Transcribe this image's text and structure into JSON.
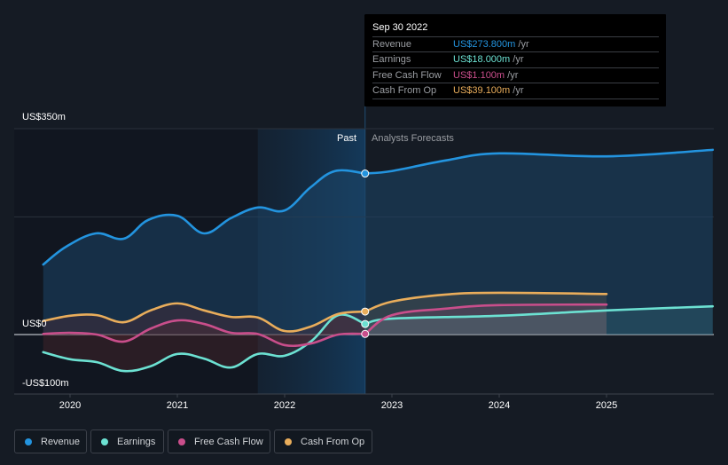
{
  "tooltip": {
    "date": "Sep 30 2022",
    "rows": [
      {
        "label": "Revenue",
        "value": "US$273.800m",
        "unit": "/yr",
        "color": "#2394df"
      },
      {
        "label": "Earnings",
        "value": "US$18.000m",
        "unit": "/yr",
        "color": "#6ce1d2"
      },
      {
        "label": "Free Cash Flow",
        "value": "US$1.100m",
        "unit": "/yr",
        "color": "#c94e8b"
      },
      {
        "label": "Cash From Op",
        "value": "US$39.100m",
        "unit": "/yr",
        "color": "#e9ad5b"
      }
    ]
  },
  "regions": {
    "past": "Past",
    "forecast": "Analysts Forecasts"
  },
  "legend": [
    {
      "label": "Revenue",
      "color": "#2394df"
    },
    {
      "label": "Earnings",
      "color": "#6ce1d2"
    },
    {
      "label": "Free Cash Flow",
      "color": "#c94e8b"
    },
    {
      "label": "Cash From Op",
      "color": "#e9ad5b"
    }
  ],
  "chart_data": {
    "type": "line",
    "title": "",
    "xlabel": "",
    "ylabel": "",
    "ylim": [
      -100,
      350
    ],
    "xlim": [
      2019.5,
      2025.99
    ],
    "y_tick_labels": [
      "US$350m",
      "US$0",
      "-US$100m"
    ],
    "y_ticks": [
      350,
      0,
      -100
    ],
    "gridlines": [
      350,
      200
    ],
    "x_tick_labels": [
      "2020",
      "2021",
      "2022",
      "2023",
      "2024",
      "2025"
    ],
    "x_ticks": [
      2020,
      2021,
      2022,
      2023,
      2024,
      2025
    ],
    "past_end": 2022.75,
    "highlight_start": 2021.75,
    "unit": "US$m",
    "series": [
      {
        "name": "Revenue",
        "color": "#2394df",
        "past": {
          "x": [
            2019.75,
            2019.96,
            2020.24,
            2020.5,
            2020.73,
            2021.0,
            2021.25,
            2021.5,
            2021.75,
            2022.0,
            2022.24,
            2022.47,
            2022.75
          ],
          "y": [
            119,
            149,
            172,
            163,
            195,
            202,
            172,
            198,
            216,
            211,
            250,
            278,
            273.8
          ]
        },
        "forecast": {
          "x": [
            2022.75,
            2023.0,
            2023.5,
            2024.0,
            2025.0,
            2025.99
          ],
          "y": [
            273.8,
            278,
            296,
            308,
            303,
            314
          ]
        }
      },
      {
        "name": "Earnings",
        "color": "#6ce1d2",
        "past": {
          "x": [
            2019.75,
            2020.0,
            2020.25,
            2020.5,
            2020.75,
            2021.0,
            2021.25,
            2021.5,
            2021.75,
            2022.0,
            2022.25,
            2022.5,
            2022.75
          ],
          "y": [
            -30,
            -42,
            -47,
            -62,
            -54,
            -33,
            -41,
            -56,
            -33,
            -36,
            -11,
            33,
            18
          ]
        },
        "forecast": {
          "x": [
            2022.75,
            2023.0,
            2024.0,
            2025.0,
            2025.99
          ],
          "y": [
            18,
            27,
            32,
            41,
            48
          ]
        }
      },
      {
        "name": "Free Cash Flow",
        "color": "#c94e8b",
        "past": {
          "x": [
            2019.75,
            2020.0,
            2020.25,
            2020.5,
            2020.75,
            2021.0,
            2021.25,
            2021.5,
            2021.75,
            2022.0,
            2022.25,
            2022.5,
            2022.75
          ],
          "y": [
            1,
            3,
            0,
            -12,
            10,
            24,
            18,
            3,
            1,
            -18,
            -15,
            0,
            1.1
          ]
        },
        "forecast": {
          "x": [
            2022.75,
            2023.0,
            2023.5,
            2024.0,
            2025.0
          ],
          "y": [
            1.1,
            33,
            44,
            50,
            51
          ]
        }
      },
      {
        "name": "Cash From Op",
        "color": "#e9ad5b",
        "past": {
          "x": [
            2019.75,
            2020.0,
            2020.25,
            2020.5,
            2020.75,
            2021.0,
            2021.25,
            2021.5,
            2021.75,
            2022.0,
            2022.25,
            2022.5,
            2022.75
          ],
          "y": [
            23,
            32,
            33,
            21,
            41,
            53,
            41,
            30,
            29,
            6,
            14,
            35,
            39.1
          ]
        },
        "forecast": {
          "x": [
            2022.75,
            2023.0,
            2023.5,
            2024.0,
            2025.0
          ],
          "y": [
            39.1,
            56,
            68,
            71,
            69
          ]
        }
      }
    ]
  }
}
